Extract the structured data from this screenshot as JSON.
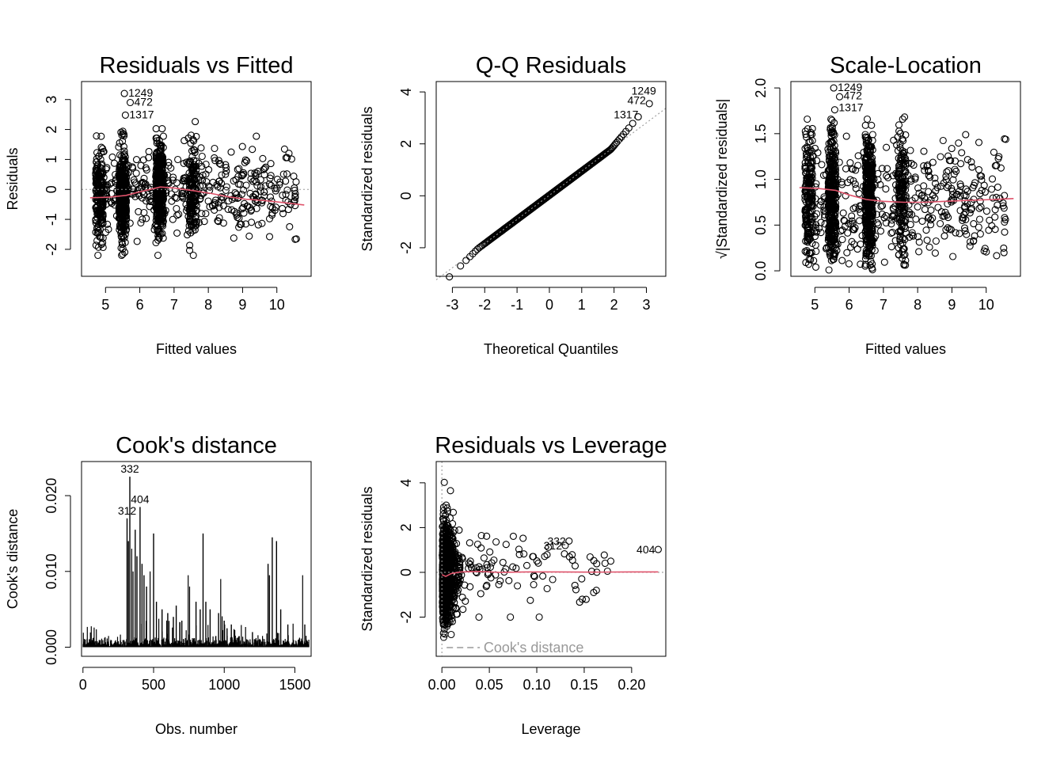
{
  "chart_data": [
    {
      "id": "resfit",
      "type": "scatter",
      "title": "Residuals vs Fitted",
      "xlabel": "Fitted values",
      "ylabel": "Residuals",
      "xlim": [
        4.3,
        11.0
      ],
      "ylim": [
        -2.9,
        3.6
      ],
      "xticks": [
        "5",
        "6",
        "7",
        "8",
        "9",
        "10"
      ],
      "yticks": [
        "-2",
        "-1",
        "0",
        "1",
        "2",
        "3"
      ],
      "ref_line_y": 0,
      "smooth": [
        [
          4.55,
          -0.28
        ],
        [
          5.1,
          -0.26
        ],
        [
          5.6,
          -0.2
        ],
        [
          6.0,
          -0.08
        ],
        [
          6.6,
          0.08
        ],
        [
          7.0,
          0.05
        ],
        [
          7.6,
          -0.05
        ],
        [
          8.1,
          -0.14
        ],
        [
          8.6,
          -0.25
        ],
        [
          9.1,
          -0.33
        ],
        [
          9.6,
          -0.37
        ],
        [
          10.2,
          -0.44
        ],
        [
          10.8,
          -0.52
        ]
      ],
      "point_labels": [
        {
          "text": "1249",
          "x": 5.55,
          "y": 3.2
        },
        {
          "text": "472",
          "x": 5.72,
          "y": 2.9
        },
        {
          "text": "1317",
          "x": 5.58,
          "y": 2.48
        }
      ]
    },
    {
      "id": "qq",
      "type": "scatter",
      "title": "Q-Q Residuals",
      "xlabel": "Theoretical Quantiles",
      "ylabel": "Standardized residuals",
      "xlim": [
        -3.5,
        3.6
      ],
      "ylim": [
        -3.1,
        4.4
      ],
      "xticks": [
        "-3",
        "-2",
        "-1",
        "0",
        "1",
        "2",
        "3"
      ],
      "yticks": [
        "-2",
        "0",
        "2",
        "4"
      ],
      "ref_line": {
        "intercept": 0.02,
        "slope": 0.93
      },
      "point_labels": [
        {
          "text": "1249",
          "x": 3.4,
          "y": 4.02
        },
        {
          "text": "472",
          "x": 3.08,
          "y": 3.66
        },
        {
          "text": "1317",
          "x": 2.85,
          "y": 3.1
        }
      ]
    },
    {
      "id": "scaleloc",
      "type": "scatter",
      "title": "Scale-Location",
      "xlabel": "Fitted values",
      "ylabel": "√|Standardized residuals|",
      "xlim": [
        4.3,
        11.0
      ],
      "ylim": [
        -0.06,
        2.07
      ],
      "xticks": [
        "5",
        "6",
        "7",
        "8",
        "9",
        "10"
      ],
      "yticks": [
        "0.0",
        "0.5",
        "1.0",
        "1.5",
        "2.0"
      ],
      "smooth": [
        [
          4.55,
          0.91
        ],
        [
          5.1,
          0.9
        ],
        [
          5.6,
          0.88
        ],
        [
          6.0,
          0.83
        ],
        [
          6.5,
          0.78
        ],
        [
          7.0,
          0.76
        ],
        [
          7.6,
          0.75
        ],
        [
          8.2,
          0.75
        ],
        [
          8.8,
          0.76
        ],
        [
          9.5,
          0.77
        ],
        [
          10.2,
          0.78
        ],
        [
          10.8,
          0.79
        ]
      ],
      "point_labels": [
        {
          "text": "1249",
          "x": 5.55,
          "y": 2.0
        },
        {
          "text": "472",
          "x": 5.72,
          "y": 1.91
        },
        {
          "text": "1317",
          "x": 5.58,
          "y": 1.78
        }
      ]
    },
    {
      "id": "cooks",
      "type": "bar",
      "title": "Cook's distance",
      "xlabel": "Obs. number",
      "ylabel": "Cook's distance",
      "xlim": [
        -10,
        1615
      ],
      "ylim": [
        -0.0012,
        0.0245
      ],
      "xticks": [
        "0",
        "500",
        "1000",
        "1500"
      ],
      "yticks": [
        "0.000",
        "0.010",
        "0.020"
      ],
      "n_obs": 1599,
      "spikes": [
        [
          312,
          0.017
        ],
        [
          322,
          0.014
        ],
        [
          332,
          0.0225
        ],
        [
          345,
          0.013
        ],
        [
          355,
          0.01
        ],
        [
          370,
          0.0155
        ],
        [
          382,
          0.012
        ],
        [
          404,
          0.0185
        ],
        [
          418,
          0.011
        ],
        [
          432,
          0.0095
        ],
        [
          450,
          0.008
        ],
        [
          475,
          0.01
        ],
        [
          500,
          0.015
        ],
        [
          520,
          0.006
        ],
        [
          560,
          0.005
        ],
        [
          600,
          0.0045
        ],
        [
          640,
          0.004
        ],
        [
          660,
          0.0055
        ],
        [
          700,
          0.0035
        ],
        [
          745,
          0.0095
        ],
        [
          755,
          0.008
        ],
        [
          800,
          0.006
        ],
        [
          830,
          0.005
        ],
        [
          850,
          0.015
        ],
        [
          870,
          0.006
        ],
        [
          900,
          0.005
        ],
        [
          960,
          0.0045
        ],
        [
          975,
          0.009
        ],
        [
          1000,
          0.0035
        ],
        [
          1020,
          0.0025
        ],
        [
          1050,
          0.003
        ],
        [
          1200,
          0.002
        ],
        [
          1310,
          0.011
        ],
        [
          1320,
          0.0095
        ],
        [
          1340,
          0.0145
        ],
        [
          1370,
          0.014
        ],
        [
          1400,
          0.005
        ],
        [
          1450,
          0.003
        ],
        [
          1555,
          0.0095
        ],
        [
          1570,
          0.003
        ]
      ],
      "point_labels": [
        {
          "text": "332",
          "x": 332,
          "y": 0.0225
        },
        {
          "text": "404",
          "x": 404,
          "y": 0.0185
        },
        {
          "text": "312",
          "x": 312,
          "y": 0.017
        }
      ]
    },
    {
      "id": "resleverage",
      "type": "scatter",
      "title": "Residuals vs Leverage",
      "xlabel": "Leverage",
      "ylabel": "Standardized residuals",
      "xlim": [
        -0.006,
        0.236
      ],
      "ylim": [
        -3.75,
        4.95
      ],
      "xticks": [
        "0.00",
        "0.05",
        "0.10",
        "0.15",
        "0.20"
      ],
      "yticks": [
        "-2",
        "0",
        "2",
        "4"
      ],
      "ref_line_y": 0,
      "smooth": [
        [
          0.0,
          -0.1
        ],
        [
          0.004,
          -0.18
        ],
        [
          0.01,
          -0.05
        ],
        [
          0.02,
          0.02
        ],
        [
          0.04,
          0.04
        ],
        [
          0.06,
          0.0
        ],
        [
          0.09,
          0.02
        ],
        [
          0.12,
          0.02
        ],
        [
          0.16,
          0.01
        ],
        [
          0.2,
          0.02
        ],
        [
          0.228,
          0.02
        ]
      ],
      "legend": "Cook's distance",
      "point_labels": [
        {
          "text": "332",
          "x": 0.134,
          "y": 1.4
        },
        {
          "text": "312",
          "x": 0.13,
          "y": 1.2
        },
        {
          "text": "404",
          "x": 0.228,
          "y": 1.02
        }
      ]
    }
  ]
}
